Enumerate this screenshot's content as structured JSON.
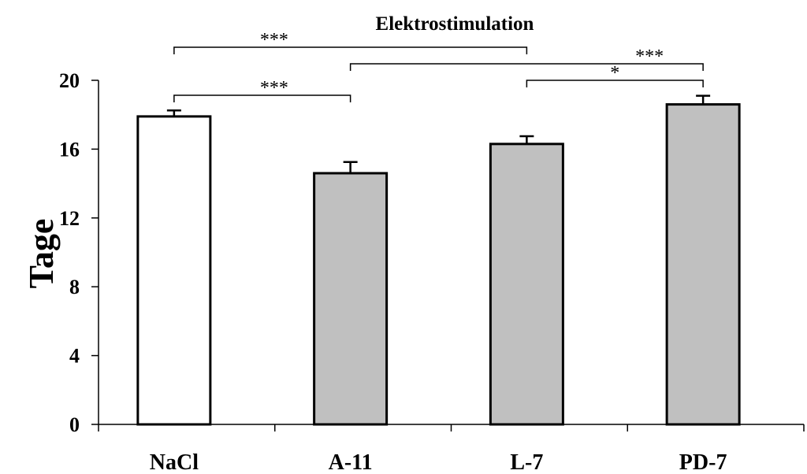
{
  "chart_data": {
    "type": "bar",
    "title": "Elektrostimulation",
    "ylabel": "Tage",
    "xlabel": "",
    "ylim": [
      0,
      20
    ],
    "yticks": [
      0,
      4,
      8,
      12,
      16,
      20
    ],
    "categories": [
      "NaCl",
      "A-11",
      "L-7",
      "PD-7"
    ],
    "values": [
      17.9,
      14.6,
      16.3,
      18.6
    ],
    "errors": [
      0.35,
      0.65,
      0.45,
      0.5
    ],
    "bar_colors": [
      "#ffffff",
      "#c0c0c0",
      "#c0c0c0",
      "#c0c0c0"
    ],
    "grid": false,
    "significance": [
      {
        "from": "NaCl",
        "to": "L-7",
        "label": "***"
      },
      {
        "from": "A-11",
        "to": "PD-7",
        "label": "***"
      },
      {
        "from": "L-7",
        "to": "PD-7",
        "label": "*"
      },
      {
        "from": "NaCl",
        "to": "A-11",
        "label": "***"
      }
    ]
  }
}
